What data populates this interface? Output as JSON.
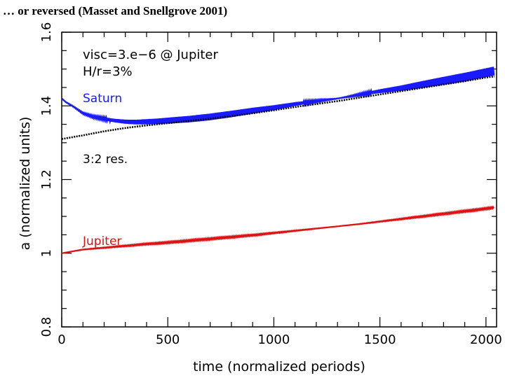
{
  "slide_title": "… or reversed (Masset and Snellgrove 2001)",
  "chart_data": {
    "type": "line",
    "title": "",
    "xlabel": "time (normalized periods)",
    "ylabel": "a (normalized units)",
    "xlim": [
      0,
      2050
    ],
    "ylim": [
      0.8,
      1.6
    ],
    "x_ticks": [
      "0",
      "500",
      "1000",
      "1500",
      "2000"
    ],
    "y_ticks": [
      "0.8",
      "1",
      "1.2",
      "1.4",
      "1.6"
    ],
    "x_tick_values": [
      0,
      500,
      1000,
      1500,
      2000
    ],
    "y_tick_values": [
      0.8,
      1.0,
      1.2,
      1.4,
      1.6
    ],
    "grid": false,
    "annotations": {
      "params_line1": "visc=3.e−6 @ Jupiter",
      "params_line2": "H/r=3%",
      "saturn_label": "Saturn",
      "resonance_label": "3:2 res.",
      "jupiter_label": "Jupiter"
    },
    "colors": {
      "saturn": "#1a1aff",
      "resonance": "#000000",
      "jupiter": "#dd1111"
    },
    "series": [
      {
        "name": "Saturn",
        "x": [
          0,
          20,
          50,
          100,
          150,
          200,
          250,
          300,
          350,
          400,
          450,
          500,
          600,
          700,
          800,
          900,
          1000,
          1100,
          1200,
          1300,
          1400,
          1500,
          1600,
          1700,
          1800,
          1900,
          2000,
          2040
        ],
        "values": [
          1.42,
          1.41,
          1.4,
          1.38,
          1.37,
          1.365,
          1.36,
          1.357,
          1.356,
          1.357,
          1.358,
          1.36,
          1.364,
          1.37,
          1.378,
          1.387,
          1.395,
          1.405,
          1.413,
          1.42,
          1.43,
          1.44,
          1.448,
          1.458,
          1.468,
          1.478,
          1.49,
          1.495
        ],
        "oscillation_amplitude": 0.012
      },
      {
        "name": "3:2 res.",
        "x": [
          0,
          100,
          200,
          300,
          400,
          500,
          600,
          700,
          800,
          900,
          1000,
          1100,
          1200,
          1300,
          1400,
          1500,
          1600,
          1700,
          1800,
          1900,
          2000,
          2040
        ],
        "values": [
          1.31,
          1.32,
          1.331,
          1.34,
          1.347,
          1.353,
          1.359,
          1.365,
          1.372,
          1.38,
          1.388,
          1.397,
          1.405,
          1.413,
          1.422,
          1.431,
          1.44,
          1.449,
          1.458,
          1.467,
          1.477,
          1.48
        ]
      },
      {
        "name": "Jupiter",
        "x": [
          0,
          100,
          200,
          300,
          400,
          500,
          600,
          700,
          800,
          900,
          1000,
          1100,
          1200,
          1300,
          1400,
          1500,
          1600,
          1700,
          1800,
          1900,
          2000,
          2040
        ],
        "values": [
          1.0,
          1.01,
          1.015,
          1.02,
          1.025,
          1.029,
          1.034,
          1.039,
          1.044,
          1.049,
          1.055,
          1.061,
          1.067,
          1.073,
          1.079,
          1.086,
          1.093,
          1.1,
          1.107,
          1.114,
          1.121,
          1.124
        ],
        "oscillation_amplitude": 0.002
      }
    ]
  }
}
